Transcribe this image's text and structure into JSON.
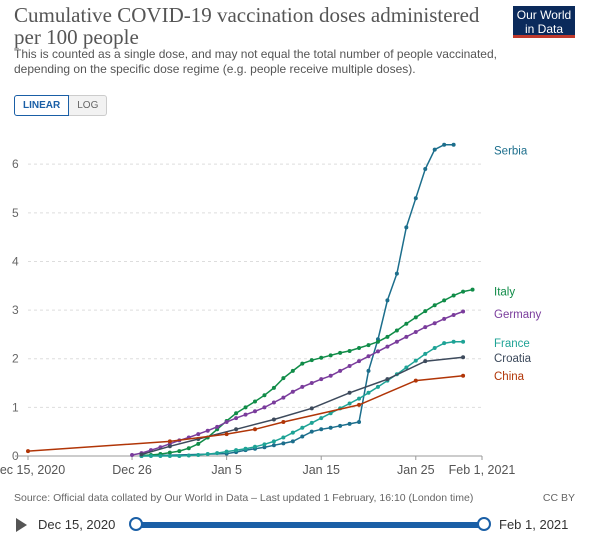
{
  "header": {
    "title": "Cumulative COVID-19 vaccination doses administered per 100 people",
    "subtitle": "This is counted as a single dose, and may not equal the total number of people vaccinated, depending on the specific dose regime (e.g. people receive multiple doses).",
    "logo": "Our World in Data"
  },
  "scale_toggle": {
    "linear": "LINEAR",
    "log": "LOG"
  },
  "footer": {
    "source": "Source: Official data collated by Our World in Data – Last updated 1 February, 16:10 (London time)",
    "license": "CC BY"
  },
  "timeline": {
    "start": "Dec 15, 2020",
    "end": "Feb 1, 2021"
  },
  "chart_data": {
    "type": "line",
    "y_ticks": [
      "0",
      "1",
      "2",
      "3",
      "4",
      "5",
      "6"
    ],
    "x_ticks": [
      {
        "day": 0,
        "label": "Dec 15, 2020"
      },
      {
        "day": 11,
        "label": "Dec 26"
      },
      {
        "day": 21,
        "label": "Jan 5"
      },
      {
        "day": 31,
        "label": "Jan 15"
      },
      {
        "day": 41,
        "label": "Jan 25"
      },
      {
        "day": 48,
        "label": "Feb 1, 2021"
      }
    ],
    "xlim": [
      0,
      48
    ],
    "ylim": [
      0,
      6.6
    ],
    "series": [
      {
        "name": "Serbia",
        "color": "#1c6e8c",
        "x": [
          12,
          21,
          22,
          23,
          24,
          25,
          26,
          27,
          28,
          29,
          30,
          31,
          32,
          33,
          34,
          35,
          36,
          37,
          38,
          39,
          40,
          41,
          42,
          43,
          44,
          45
        ],
        "y": [
          0.0,
          0.05,
          0.08,
          0.12,
          0.15,
          0.18,
          0.22,
          0.26,
          0.3,
          0.4,
          0.5,
          0.55,
          0.58,
          0.62,
          0.66,
          0.7,
          1.75,
          2.4,
          3.2,
          3.75,
          4.7,
          5.3,
          5.9,
          6.3,
          6.4,
          6.4
        ]
      },
      {
        "name": "Italy",
        "color": "#108c48",
        "x": [
          12,
          13,
          14,
          15,
          16,
          17,
          18,
          19,
          20,
          21,
          22,
          23,
          24,
          25,
          26,
          27,
          28,
          29,
          30,
          31,
          32,
          33,
          34,
          35,
          36,
          37,
          38,
          39,
          40,
          41,
          42,
          43,
          44,
          45,
          46,
          47
        ],
        "y": [
          0.01,
          0.02,
          0.04,
          0.07,
          0.1,
          0.16,
          0.25,
          0.38,
          0.55,
          0.72,
          0.88,
          1.0,
          1.12,
          1.25,
          1.4,
          1.6,
          1.75,
          1.9,
          1.97,
          2.02,
          2.07,
          2.12,
          2.16,
          2.22,
          2.28,
          2.35,
          2.45,
          2.58,
          2.72,
          2.85,
          2.98,
          3.1,
          3.2,
          3.3,
          3.38,
          3.42
        ]
      },
      {
        "name": "Germany",
        "color": "#7a3c9c",
        "x": [
          11,
          12,
          13,
          14,
          15,
          16,
          17,
          18,
          19,
          20,
          21,
          22,
          23,
          24,
          25,
          26,
          27,
          28,
          29,
          30,
          31,
          32,
          33,
          34,
          35,
          36,
          37,
          38,
          39,
          40,
          41,
          42,
          43,
          44,
          45,
          46
        ],
        "y": [
          0.02,
          0.06,
          0.12,
          0.18,
          0.25,
          0.32,
          0.38,
          0.45,
          0.52,
          0.6,
          0.7,
          0.78,
          0.85,
          0.92,
          1.0,
          1.1,
          1.2,
          1.32,
          1.42,
          1.5,
          1.58,
          1.65,
          1.75,
          1.85,
          1.95,
          2.05,
          2.15,
          2.25,
          2.35,
          2.45,
          2.55,
          2.65,
          2.73,
          2.82,
          2.9,
          2.97
        ]
      },
      {
        "name": "France",
        "color": "#1ea396",
        "x": [
          12,
          13,
          14,
          15,
          16,
          17,
          18,
          19,
          20,
          21,
          22,
          23,
          24,
          25,
          26,
          27,
          28,
          29,
          30,
          31,
          32,
          33,
          34,
          35,
          36,
          37,
          38,
          39,
          40,
          41,
          42,
          43,
          44,
          45,
          46
        ],
        "y": [
          0.0,
          0.0,
          0.0,
          0.0,
          0.0,
          0.01,
          0.02,
          0.04,
          0.06,
          0.09,
          0.12,
          0.15,
          0.19,
          0.24,
          0.3,
          0.38,
          0.48,
          0.58,
          0.68,
          0.78,
          0.88,
          0.98,
          1.08,
          1.18,
          1.3,
          1.42,
          1.55,
          1.68,
          1.82,
          1.96,
          2.1,
          2.22,
          2.32,
          2.35,
          2.35
        ]
      },
      {
        "name": "Croatia",
        "color": "#3d4a5c",
        "x": [
          12,
          15,
          18,
          22,
          26,
          30,
          34,
          38,
          42,
          46
        ],
        "y": [
          0.03,
          0.2,
          0.35,
          0.55,
          0.75,
          0.98,
          1.3,
          1.58,
          1.95,
          2.03
        ]
      },
      {
        "name": "China",
        "color": "#b13507",
        "x": [
          0,
          15,
          21,
          24,
          27,
          35,
          41,
          46
        ],
        "y": [
          0.1,
          0.3,
          0.45,
          0.55,
          0.7,
          1.05,
          1.55,
          1.65
        ]
      }
    ]
  }
}
